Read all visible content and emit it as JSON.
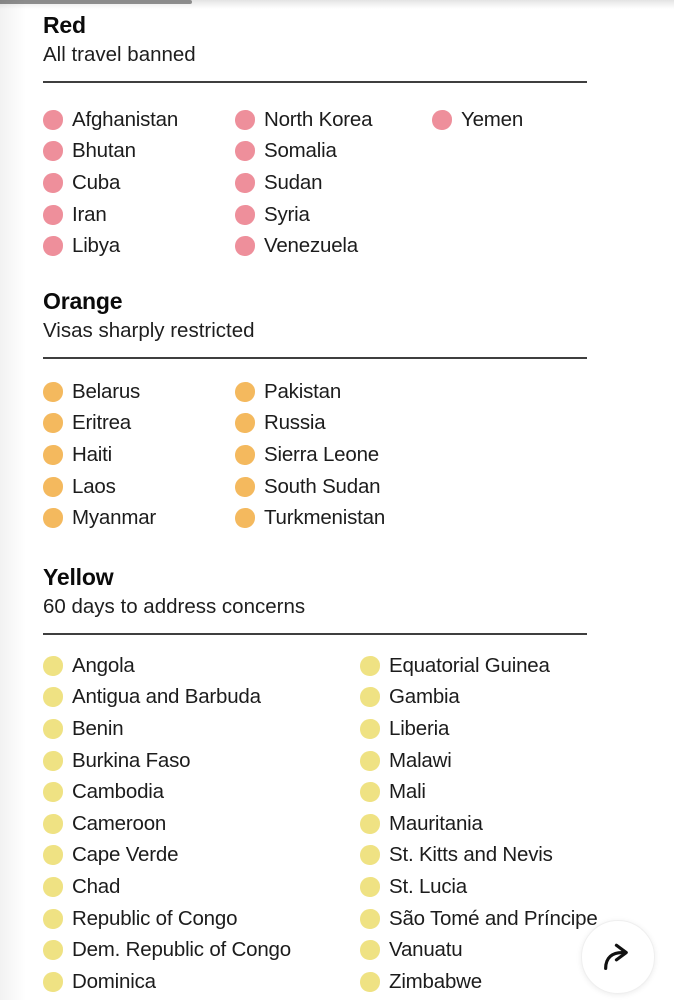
{
  "page": {
    "background_color": "#ffffff",
    "rule_color": "#3f3f3f",
    "text_color": "#1c1c1c"
  },
  "share": {
    "icon": "share-forward-arrow",
    "icon_color": "#111111"
  },
  "sections": [
    {
      "id": "red",
      "title": "Red",
      "subtitle": "All travel banned",
      "dot_color": "#ee8f9b",
      "columns": [
        [
          "Afghanistan",
          "Bhutan",
          "Cuba",
          "Iran",
          "Libya"
        ],
        [
          "North Korea",
          "Somalia",
          "Sudan",
          "Syria",
          "Venezuela"
        ],
        [
          "Yemen"
        ]
      ]
    },
    {
      "id": "orange",
      "title": "Orange",
      "subtitle": "Visas sharply restricted",
      "dot_color": "#f4b95e",
      "columns": [
        [
          "Belarus",
          "Eritrea",
          "Haiti",
          "Laos",
          "Myanmar"
        ],
        [
          "Pakistan",
          "Russia",
          "Sierra Leone",
          "South Sudan",
          "Turkmenistan"
        ]
      ]
    },
    {
      "id": "yellow",
      "title": "Yellow",
      "subtitle": "60 days to address concerns",
      "dot_color": "#efe283",
      "columns": [
        [
          "Angola",
          "Antigua and Barbuda",
          "Benin",
          "Burkina Faso",
          "Cambodia",
          "Cameroon",
          "Cape Verde",
          "Chad",
          "Republic of Congo",
          "Dem. Republic of Congo",
          "Dominica"
        ],
        [
          "Equatorial Guinea",
          "Gambia",
          "Liberia",
          "Malawi",
          "Mali",
          "Mauritania",
          "St. Kitts and Nevis",
          "St. Lucia",
          "São Tomé and Príncipe",
          "Vanuatu",
          "Zimbabwe"
        ]
      ]
    }
  ]
}
